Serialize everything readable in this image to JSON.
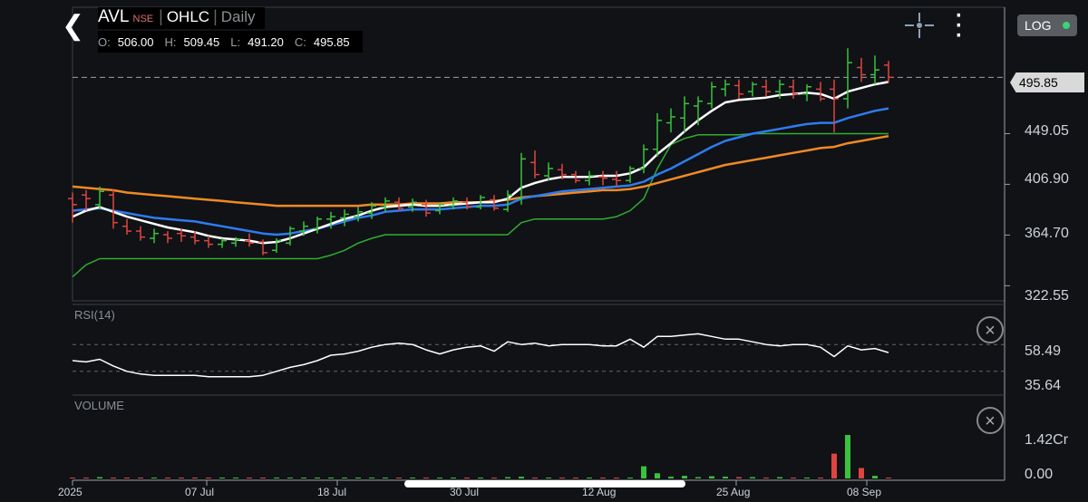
{
  "header": {
    "symbol": "AVL",
    "exchange": "NSE",
    "chart_type": "OHLC",
    "interval": "Daily",
    "ohlc": {
      "o_label": "O:",
      "o": "506.00",
      "h_label": "H:",
      "h": "509.45",
      "l_label": "L:",
      "l": "491.20",
      "c_label": "C:",
      "c": "495.85"
    },
    "log_label": "LOG"
  },
  "price_axis": {
    "labels": [
      "449.05",
      "406.90",
      "364.70",
      "322.55"
    ],
    "last_price": "495.85"
  },
  "rsi": {
    "title": "RSI(14)",
    "labels": [
      "58.49",
      "35.64"
    ]
  },
  "volume": {
    "title": "VOLUME",
    "labels": [
      "1.42Cr",
      "0.00"
    ]
  },
  "date_axis": {
    "labels": [
      "2025",
      "07 Jul",
      "18 Jul",
      "30 Jul",
      "12 Aug",
      "25 Aug",
      "08 Sep"
    ]
  },
  "colors": {
    "up": "#39c33c",
    "down": "#e0443e",
    "ema_fast": "#ffffff",
    "ema_mid": "#2f7bf0",
    "ema_slow": "#f08a24",
    "trail": "#2fae2f"
  },
  "chart_data": {
    "type": "ohlc",
    "ylim": [
      310,
      530
    ],
    "bars": [
      [
        395,
        400,
        375,
        390
      ],
      [
        398,
        402,
        385,
        395
      ],
      [
        390,
        405,
        386,
        401
      ],
      [
        398,
        403,
        370,
        375
      ],
      [
        372,
        378,
        365,
        368
      ],
      [
        368,
        372,
        360,
        363
      ],
      [
        362,
        370,
        358,
        366
      ],
      [
        365,
        368,
        358,
        362
      ],
      [
        366,
        370,
        359,
        364
      ],
      [
        363,
        368,
        357,
        360
      ],
      [
        360,
        364,
        354,
        357
      ],
      [
        357,
        362,
        354,
        360
      ],
      [
        358,
        363,
        355,
        361
      ],
      [
        360,
        366,
        355,
        358
      ],
      [
        359,
        361,
        348,
        350
      ],
      [
        352,
        362,
        350,
        360
      ],
      [
        358,
        372,
        356,
        370
      ],
      [
        368,
        376,
        364,
        372
      ],
      [
        370,
        380,
        366,
        378
      ],
      [
        378,
        384,
        370,
        380
      ],
      [
        379,
        386,
        372,
        382
      ],
      [
        380,
        388,
        376,
        384
      ],
      [
        383,
        392,
        378,
        389
      ],
      [
        388,
        396,
        384,
        393
      ],
      [
        392,
        396,
        385,
        387
      ],
      [
        388,
        395,
        384,
        392
      ],
      [
        390,
        394,
        380,
        383
      ],
      [
        385,
        392,
        382,
        390
      ],
      [
        389,
        396,
        386,
        393
      ],
      [
        392,
        396,
        386,
        388
      ],
      [
        388,
        398,
        386,
        396
      ],
      [
        394,
        398,
        385,
        387
      ],
      [
        386,
        402,
        384,
        398
      ],
      [
        395,
        433,
        390,
        428
      ],
      [
        425,
        435,
        412,
        415
      ],
      [
        414,
        425,
        410,
        420
      ],
      [
        419,
        424,
        411,
        415
      ],
      [
        415,
        418,
        408,
        410
      ],
      [
        410,
        418,
        406,
        414
      ],
      [
        413,
        418,
        406,
        412
      ],
      [
        411,
        418,
        405,
        410
      ],
      [
        410,
        422,
        408,
        420
      ],
      [
        420,
        440,
        416,
        436
      ],
      [
        436,
        466,
        430,
        460
      ],
      [
        458,
        470,
        450,
        463
      ],
      [
        462,
        480,
        450,
        474
      ],
      [
        472,
        480,
        456,
        476
      ],
      [
        474,
        492,
        470,
        488
      ],
      [
        486,
        494,
        480,
        490
      ],
      [
        489,
        494,
        478,
        482
      ],
      [
        484,
        492,
        480,
        490
      ],
      [
        488,
        494,
        480,
        484
      ],
      [
        484,
        494,
        478,
        490
      ],
      [
        488,
        494,
        478,
        482
      ],
      [
        482,
        490,
        476,
        488
      ],
      [
        486,
        492,
        476,
        478
      ],
      [
        486,
        494,
        450,
        478
      ],
      [
        478,
        520,
        470,
        508
      ],
      [
        504,
        512,
        492,
        498
      ],
      [
        498,
        514,
        490,
        502
      ],
      [
        506,
        509.45,
        491.2,
        495.85
      ]
    ],
    "ema_fast": [
      380,
      385,
      388,
      384,
      380,
      377,
      374,
      371,
      369,
      367,
      364,
      362,
      361,
      360,
      358,
      359,
      362,
      366,
      370,
      374,
      378,
      381,
      385,
      388,
      389,
      390,
      389,
      389,
      390,
      391,
      392,
      392,
      395,
      404,
      408,
      411,
      413,
      413,
      413,
      414,
      414,
      416,
      421,
      432,
      441,
      451,
      460,
      468,
      475,
      477,
      478,
      479,
      481,
      482,
      483,
      482,
      478,
      484,
      487,
      490,
      492
    ],
    "ema_mid": [
      385,
      386,
      387,
      385,
      383,
      381,
      379,
      378,
      377,
      376,
      374,
      372,
      370,
      368,
      366,
      365,
      366,
      368,
      370,
      373,
      376,
      379,
      381,
      384,
      385,
      386,
      386,
      386,
      387,
      388,
      389,
      389,
      390,
      395,
      397,
      399,
      401,
      402,
      403,
      404,
      405,
      406,
      409,
      415,
      420,
      426,
      432,
      438,
      443,
      446,
      449,
      451,
      453,
      455,
      457,
      458,
      458,
      462,
      465,
      468,
      470
    ],
    "ema_slow": [
      405,
      404,
      403,
      402,
      400,
      399,
      398,
      397,
      396,
      395,
      394,
      393,
      392,
      391,
      390,
      389,
      389,
      389,
      389,
      389,
      389,
      389,
      390,
      390,
      390,
      391,
      391,
      391,
      392,
      392,
      392,
      393,
      394,
      396,
      397,
      398,
      399,
      400,
      401,
      402,
      402,
      403,
      405,
      408,
      411,
      414,
      417,
      420,
      423,
      425,
      427,
      429,
      431,
      433,
      435,
      437,
      438,
      441,
      443,
      445,
      447
    ],
    "trail": [
      330,
      340,
      345,
      345,
      345,
      345,
      345,
      345,
      345,
      345,
      345,
      345,
      345,
      345,
      345,
      345,
      345,
      345,
      345,
      348,
      352,
      358,
      362,
      365,
      365,
      365,
      365,
      365,
      365,
      365,
      365,
      365,
      365,
      375,
      378,
      378,
      378,
      378,
      378,
      378,
      380,
      385,
      395,
      420,
      440,
      445,
      448,
      448,
      448,
      448,
      449,
      449,
      449,
      449,
      449,
      449,
      449,
      449,
      449,
      449,
      449
    ],
    "rsi": [
      48,
      47,
      49,
      44,
      40,
      38,
      37,
      37,
      37,
      37,
      36,
      36,
      36,
      36,
      37,
      40,
      43,
      45,
      48,
      52,
      53,
      55,
      58,
      60,
      61,
      60,
      56,
      53,
      56,
      58,
      59,
      55,
      62,
      60,
      61,
      59,
      60,
      60,
      60,
      59,
      59,
      64,
      58,
      66,
      66,
      67,
      68,
      66,
      64,
      64,
      62,
      60,
      59,
      60,
      60,
      58,
      51,
      59,
      56,
      57,
      54
    ],
    "rsi_marks": [
      58.49,
      35.64
    ],
    "volume": [
      0.02,
      0.01,
      0.03,
      0.01,
      0.01,
      0.01,
      0.01,
      0.01,
      0.01,
      0.01,
      0.01,
      0.01,
      0.01,
      0.01,
      0.01,
      0.01,
      0.01,
      0.01,
      0.01,
      0.01,
      0.01,
      0.01,
      0.01,
      0.01,
      0.01,
      0.01,
      0.01,
      0.01,
      0.01,
      0.01,
      0.01,
      0.01,
      0.03,
      0.04,
      0.02,
      0.01,
      0.01,
      0.01,
      0.01,
      0.01,
      0.02,
      0.01,
      0.28,
      0.12,
      0.04,
      0.06,
      0.03,
      0.05,
      0.04,
      0.03,
      0.03,
      0.02,
      0.03,
      0.02,
      0.02,
      0.02,
      0.57,
      1.0,
      0.24,
      0.06,
      0.02
    ]
  }
}
